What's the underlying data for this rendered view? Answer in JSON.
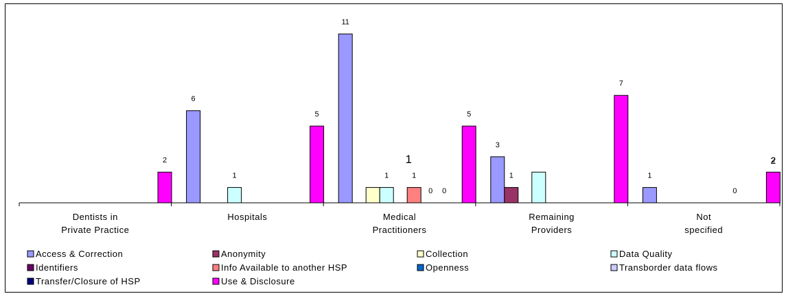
{
  "chart_data": {
    "type": "bar",
    "categories": [
      [
        "Dentists in",
        "Private Practice"
      ],
      [
        "Hospitals"
      ],
      [
        "Medical",
        "Practitioners"
      ],
      [
        "Remaining",
        "Providers"
      ],
      [
        "Not",
        "specified"
      ]
    ],
    "series": [
      {
        "name": "Access & Correction",
        "color": "#9999FF",
        "values": [
          null,
          6,
          11,
          3,
          1
        ],
        "labels": [
          "",
          "6",
          "11",
          "3",
          "1"
        ]
      },
      {
        "name": "Anonymity",
        "color": "#993366",
        "values": [
          null,
          null,
          null,
          1,
          null
        ],
        "labels": [
          "",
          "",
          "",
          "1",
          ""
        ]
      },
      {
        "name": "Collection",
        "color": "#FFFFCC",
        "values": [
          null,
          null,
          1,
          null,
          null
        ],
        "labels": [
          "",
          "",
          "",
          "",
          ""
        ]
      },
      {
        "name": "Data Quality",
        "color": "#CCFFFF",
        "values": [
          null,
          1,
          1,
          2,
          null
        ],
        "labels": [
          "",
          "1",
          "1",
          "",
          ""
        ]
      },
      {
        "name": "Identifiers",
        "color": "#660066",
        "values": [
          null,
          null,
          null,
          null,
          null
        ],
        "labels": [
          "",
          "",
          "",
          "",
          ""
        ]
      },
      {
        "name": "Info Available to another HSP",
        "color": "#FF8080",
        "values": [
          null,
          null,
          1,
          null,
          null
        ],
        "labels": [
          "",
          "",
          "1",
          "",
          ""
        ]
      },
      {
        "name": "Openness",
        "color": "#0066CC",
        "values": [
          null,
          null,
          0,
          null,
          0
        ],
        "labels": [
          "",
          "",
          "0",
          "",
          "0"
        ]
      },
      {
        "name": "Transborder data flows",
        "color": "#CCCCFF",
        "values": [
          null,
          null,
          0,
          null,
          null
        ],
        "labels": [
          "",
          "",
          "0",
          "",
          ""
        ]
      },
      {
        "name": "Transfer/Closure of HSP",
        "color": "#000080",
        "values": [
          null,
          null,
          null,
          null,
          null
        ],
        "labels": [
          "",
          "",
          "",
          "",
          ""
        ]
      },
      {
        "name": "Use & Disclosure",
        "color": "#FF00FF",
        "values": [
          2,
          5,
          5,
          7,
          2
        ],
        "labels": [
          "2",
          "5",
          "5",
          "7",
          "2"
        ]
      }
    ],
    "extra_labels": [
      {
        "category": 2,
        "text": "1"
      },
      {
        "category": 4,
        "text": "2"
      }
    ],
    "ylim": [
      0,
      11
    ],
    "grid": false,
    "legend_position": "bottom"
  }
}
